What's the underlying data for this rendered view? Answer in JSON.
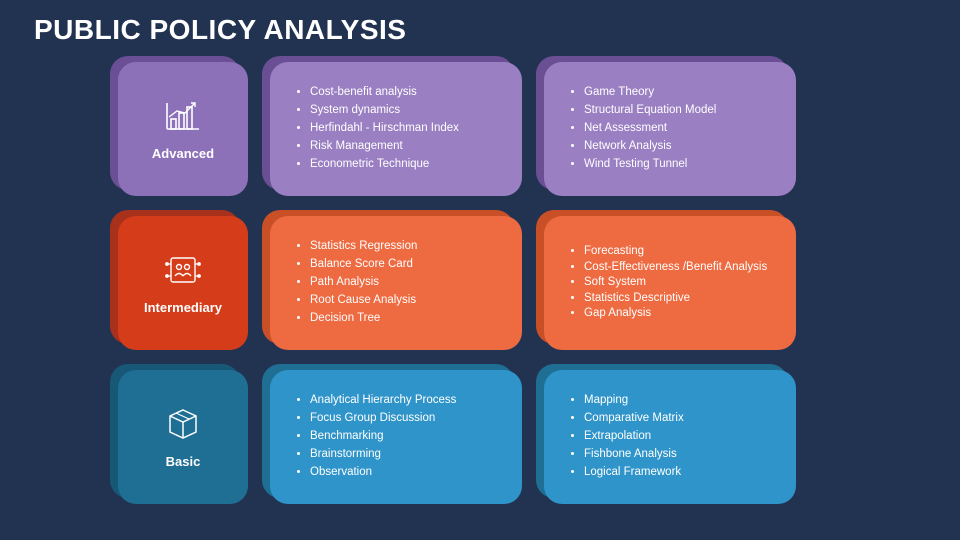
{
  "title": "PUBLIC POLICY ANALYSIS",
  "background_color": "#223352",
  "rows": [
    {
      "level": "Advanced",
      "icon": "chart",
      "colors": {
        "front": "#8c71b9",
        "shadow": "#6a4f94",
        "panel_front": "#9a7fc2",
        "panel_shadow": "#6a4f94"
      },
      "panel1": [
        "Cost-benefit analysis",
        "System dynamics",
        "Herfindahl - Hirschman Index",
        "Risk Management",
        "Econometric Technique"
      ],
      "panel2": [
        "Game Theory",
        "Structural Equation Model",
        "Net Assessment",
        "Network Analysis",
        "Wind Testing Tunnel"
      ]
    },
    {
      "level": "Intermediary",
      "icon": "people",
      "colors": {
        "front": "#d53d1a",
        "shadow": "#a7311a",
        "panel_front": "#ee6a41",
        "panel_shadow": "#c94f27"
      },
      "panel1": [
        "Statistics Regression",
        "Balance Score Card",
        "Path Analysis",
        "Root Cause Analysis",
        "Decision Tree"
      ],
      "panel2": [
        "Forecasting",
        "Cost-Effectiveness /Benefit Analysis",
        "Soft System",
        "Statistics Descriptive",
        "Gap Analysis"
      ],
      "panel2_tight": true
    },
    {
      "level": "Basic",
      "icon": "box",
      "colors": {
        "front": "#1f6e93",
        "shadow": "#175876",
        "panel_front": "#2f94c9",
        "panel_shadow": "#1f6e93"
      },
      "panel1": [
        "Analytical Hierarchy Process",
        "Focus Group Discussion",
        "Benchmarking",
        "Brainstorming",
        "Observation"
      ],
      "panel2": [
        "Mapping",
        "Comparative Matrix",
        "Extrapolation",
        "Fishbone Analysis",
        "Logical Framework"
      ]
    }
  ]
}
